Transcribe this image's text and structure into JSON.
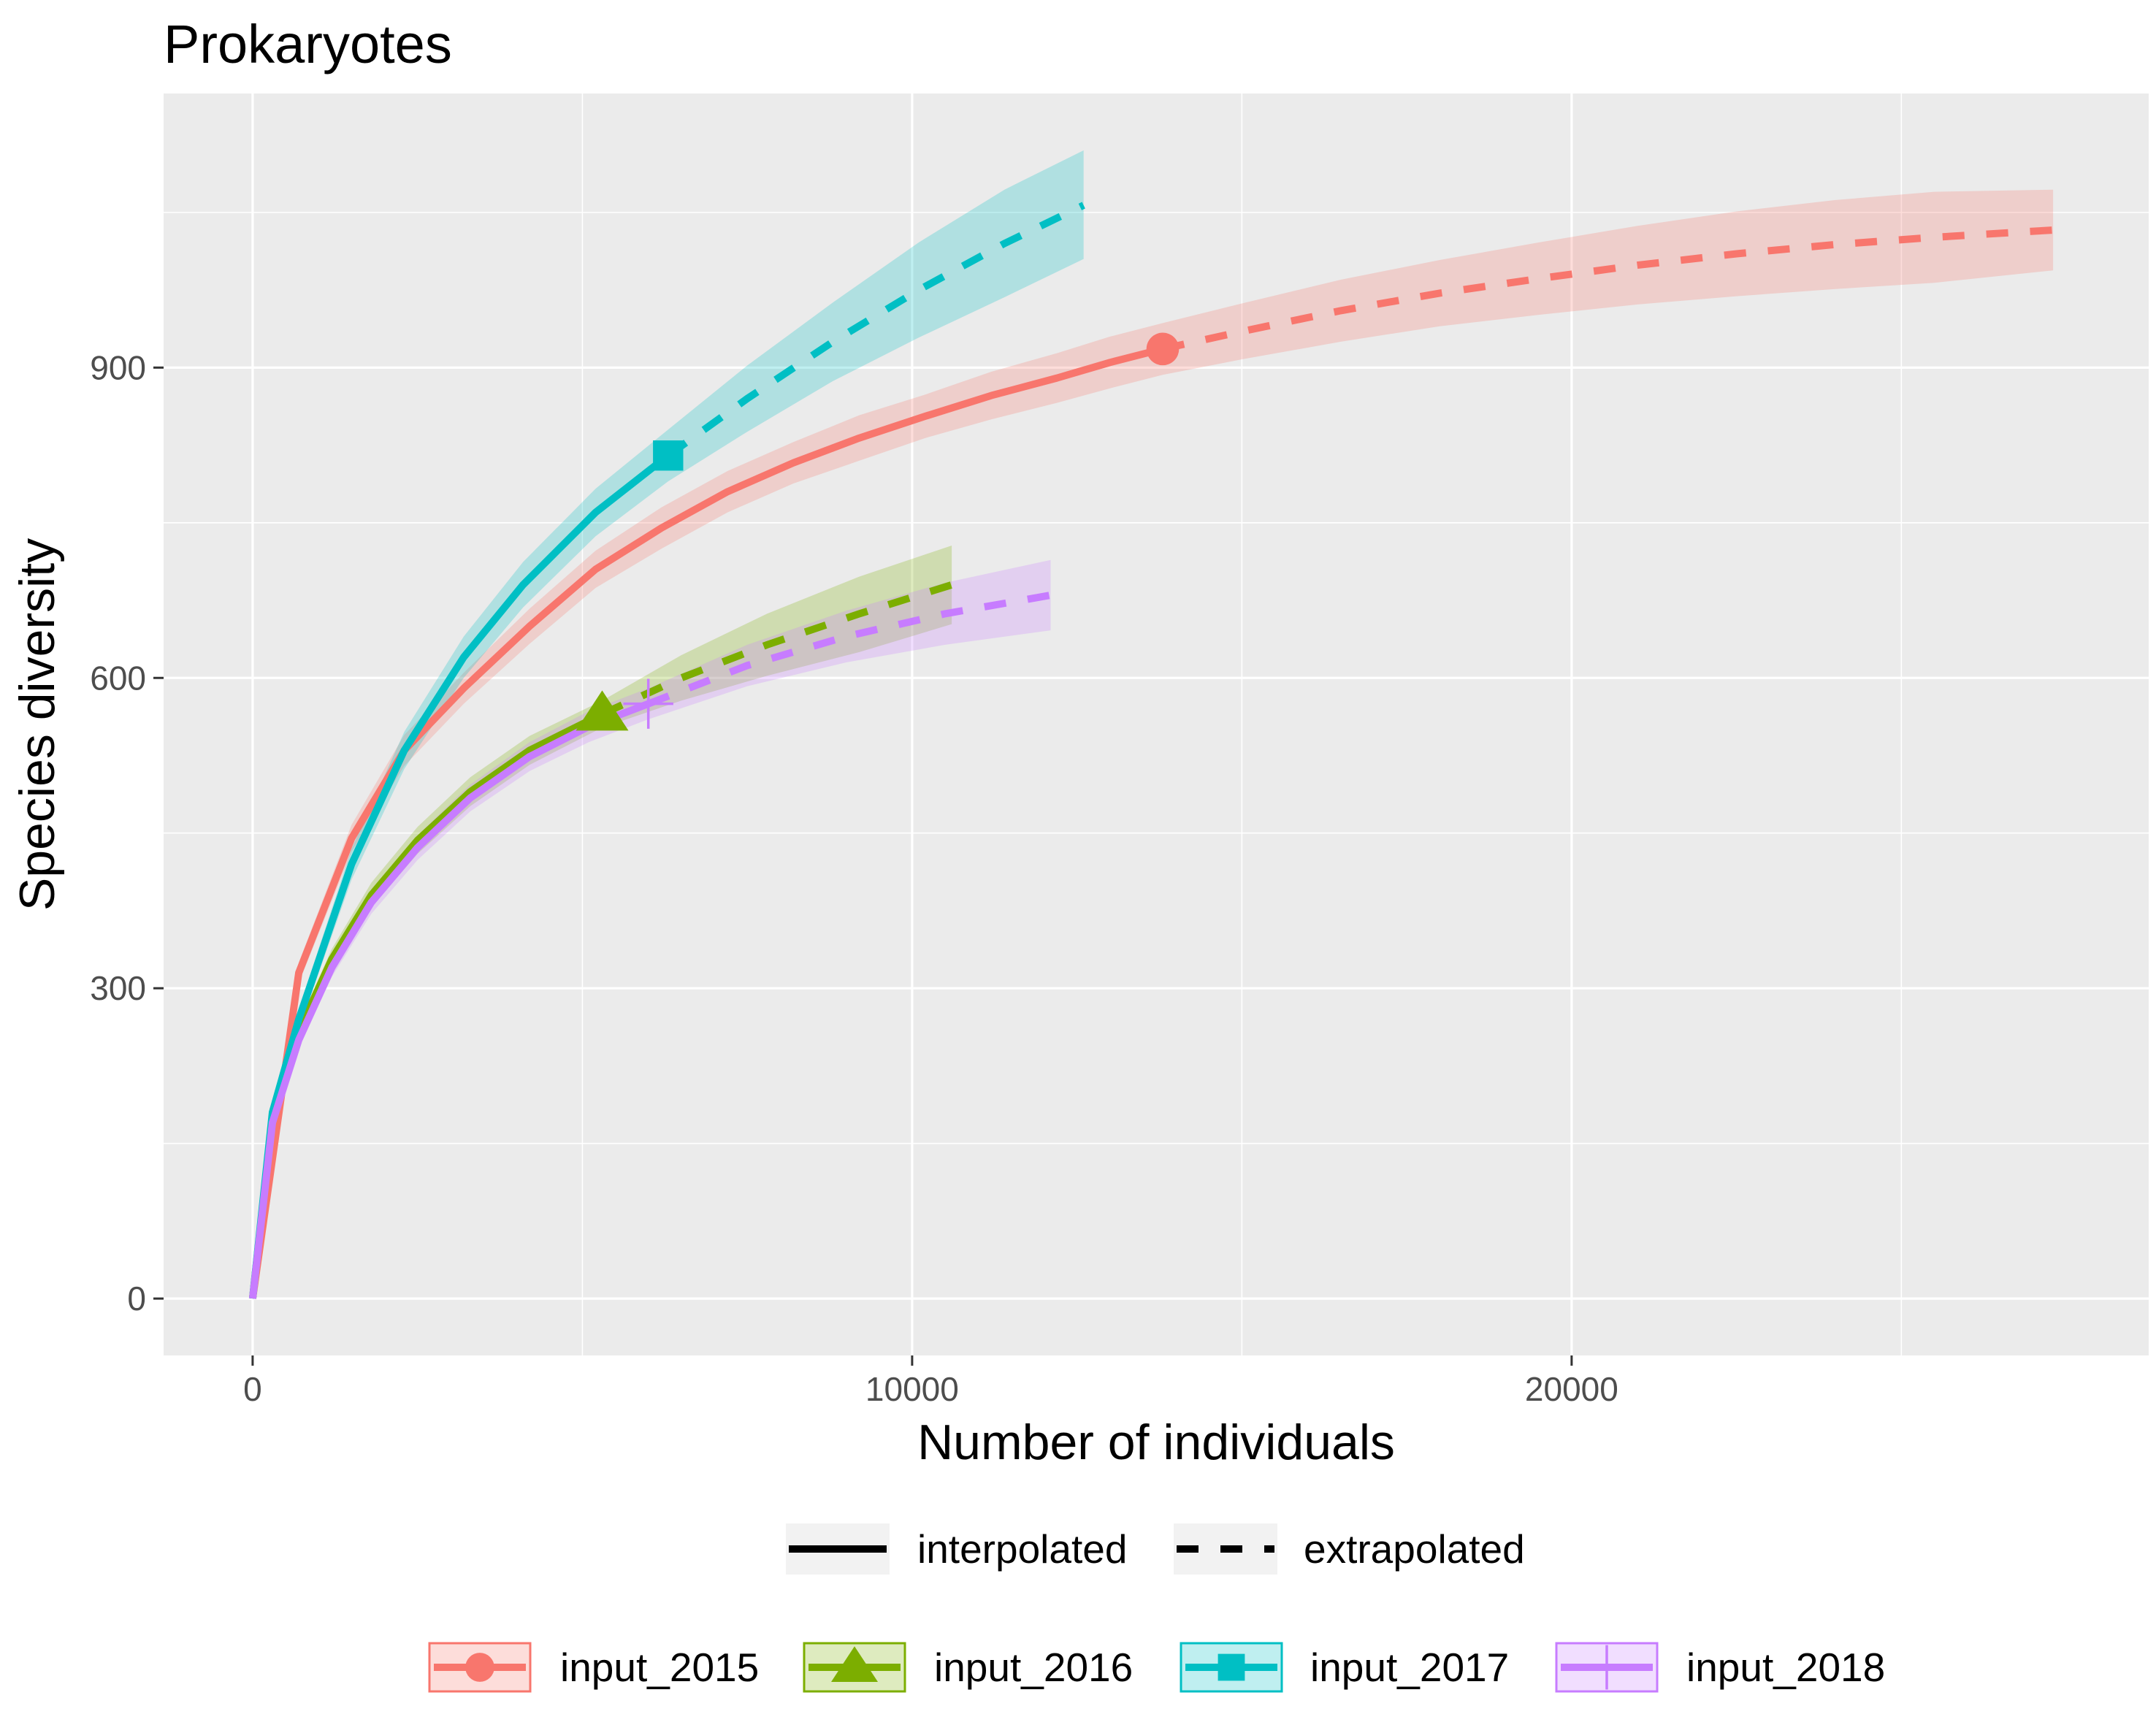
{
  "chart_data": {
    "type": "line",
    "title": "Prokaryotes",
    "xlabel": "Number of individuals",
    "ylabel": "Species diversity",
    "xlim": [
      -1350,
      28750
    ],
    "ylim": [
      -55,
      1165
    ],
    "x_ticks": [
      0,
      10000,
      20000
    ],
    "x_tick_labels": [
      "0",
      "10000",
      "20000"
    ],
    "y_ticks": [
      0,
      300,
      600,
      900
    ],
    "y_tick_labels": [
      "0",
      "300",
      "600",
      "900"
    ],
    "grid": true,
    "legend_position": "bottom",
    "linetype_legend": [
      {
        "label": "interpolated",
        "style": "solid"
      },
      {
        "label": "extrapolated",
        "style": "dashed"
      }
    ],
    "series": [
      {
        "name": "input_2015",
        "color": "#F8766D",
        "marker": "circle",
        "observed": {
          "x": 13800,
          "y": 918
        },
        "interpolated": {
          "x": [
            0,
            700,
            1500,
            2300,
            3200,
            4200,
            5200,
            6200,
            7200,
            8200,
            9200,
            10200,
            11200,
            12200,
            13000,
            13800
          ],
          "y": [
            0,
            315,
            445,
            530,
            590,
            650,
            705,
            745,
            780,
            808,
            832,
            853,
            873,
            890,
            905,
            918
          ]
        },
        "extrapolated": {
          "x": [
            13800,
            15000,
            16500,
            18000,
            19500,
            21000,
            22500,
            24000,
            25500,
            27300
          ],
          "y": [
            918,
            935,
            955,
            972,
            986,
            999,
            1010,
            1019,
            1026,
            1033
          ]
        },
        "ci_lower": [
          0,
          305,
          432,
          515,
          575,
          633,
          687,
          725,
          760,
          788,
          810,
          832,
          850,
          866,
          880,
          893,
          908,
          925,
          940,
          951,
          961,
          969,
          976,
          982,
          994
        ],
        "ci_upper": [
          0,
          325,
          458,
          545,
          605,
          667,
          723,
          765,
          800,
          828,
          854,
          874,
          896,
          914,
          930,
          943,
          962,
          985,
          1004,
          1021,
          1037,
          1051,
          1062,
          1070,
          1072
        ]
      },
      {
        "name": "input_2016",
        "color": "#7CAE00",
        "marker": "triangle",
        "observed": {
          "x": 5300,
          "y": 565
        },
        "interpolated": {
          "x": [
            0,
            300,
            700,
            1200,
            1800,
            2500,
            3300,
            4200,
            5300
          ],
          "y": [
            0,
            175,
            258,
            328,
            390,
            443,
            490,
            530,
            565
          ]
        },
        "extrapolated": {
          "x": [
            5300,
            6500,
            7800,
            9200,
            10600
          ],
          "y": [
            565,
            600,
            632,
            662,
            690
          ]
        },
        "ci_lower": [
          0,
          170,
          250,
          318,
          378,
          430,
          476,
          516,
          552,
          578,
          602,
          625,
          652
        ],
        "ci_upper": [
          0,
          180,
          266,
          338,
          402,
          456,
          504,
          544,
          578,
          622,
          662,
          698,
          728
        ]
      },
      {
        "name": "input_2017",
        "color": "#00BFC4",
        "marker": "square",
        "observed": {
          "x": 6300,
          "y": 815
        },
        "interpolated": {
          "x": [
            0,
            300,
            700,
            1500,
            2300,
            3200,
            4100,
            5200,
            6300
          ],
          "y": [
            0,
            180,
            270,
            420,
            530,
            620,
            690,
            760,
            815
          ]
        },
        "extrapolated": {
          "x": [
            6300,
            7500,
            8800,
            10100,
            11400,
            12600
          ],
          "y": [
            815,
            870,
            925,
            975,
            1020,
            1057
          ]
        },
        "ci_lower": [
          0,
          173,
          260,
          405,
          512,
          600,
          668,
          737,
          790,
          838,
          887,
          929,
          968,
          1005
        ],
        "ci_upper": [
          0,
          187,
          280,
          435,
          548,
          640,
          712,
          783,
          840,
          902,
          963,
          1021,
          1072,
          1110
        ]
      },
      {
        "name": "input_2018",
        "color": "#C77CFF",
        "marker": "cross",
        "observed": {
          "x": 6000,
          "y": 575
        },
        "interpolated": {
          "x": [
            0,
            300,
            700,
            1200,
            1800,
            2500,
            3300,
            4200,
            5100,
            6000
          ],
          "y": [
            0,
            170,
            250,
            320,
            383,
            436,
            484,
            524,
            553,
            575
          ]
        },
        "extrapolated": {
          "x": [
            6000,
            7500,
            9000,
            10500,
            12100
          ],
          "y": [
            575,
            612,
            640,
            662,
            680
          ]
        },
        "ci_lower": [
          0,
          165,
          243,
          311,
          372,
          424,
          471,
          510,
          538,
          560,
          592,
          615,
          632,
          646
        ],
        "ci_upper": [
          0,
          175,
          257,
          329,
          394,
          448,
          497,
          538,
          568,
          590,
          632,
          665,
          692,
          714
        ]
      }
    ]
  }
}
